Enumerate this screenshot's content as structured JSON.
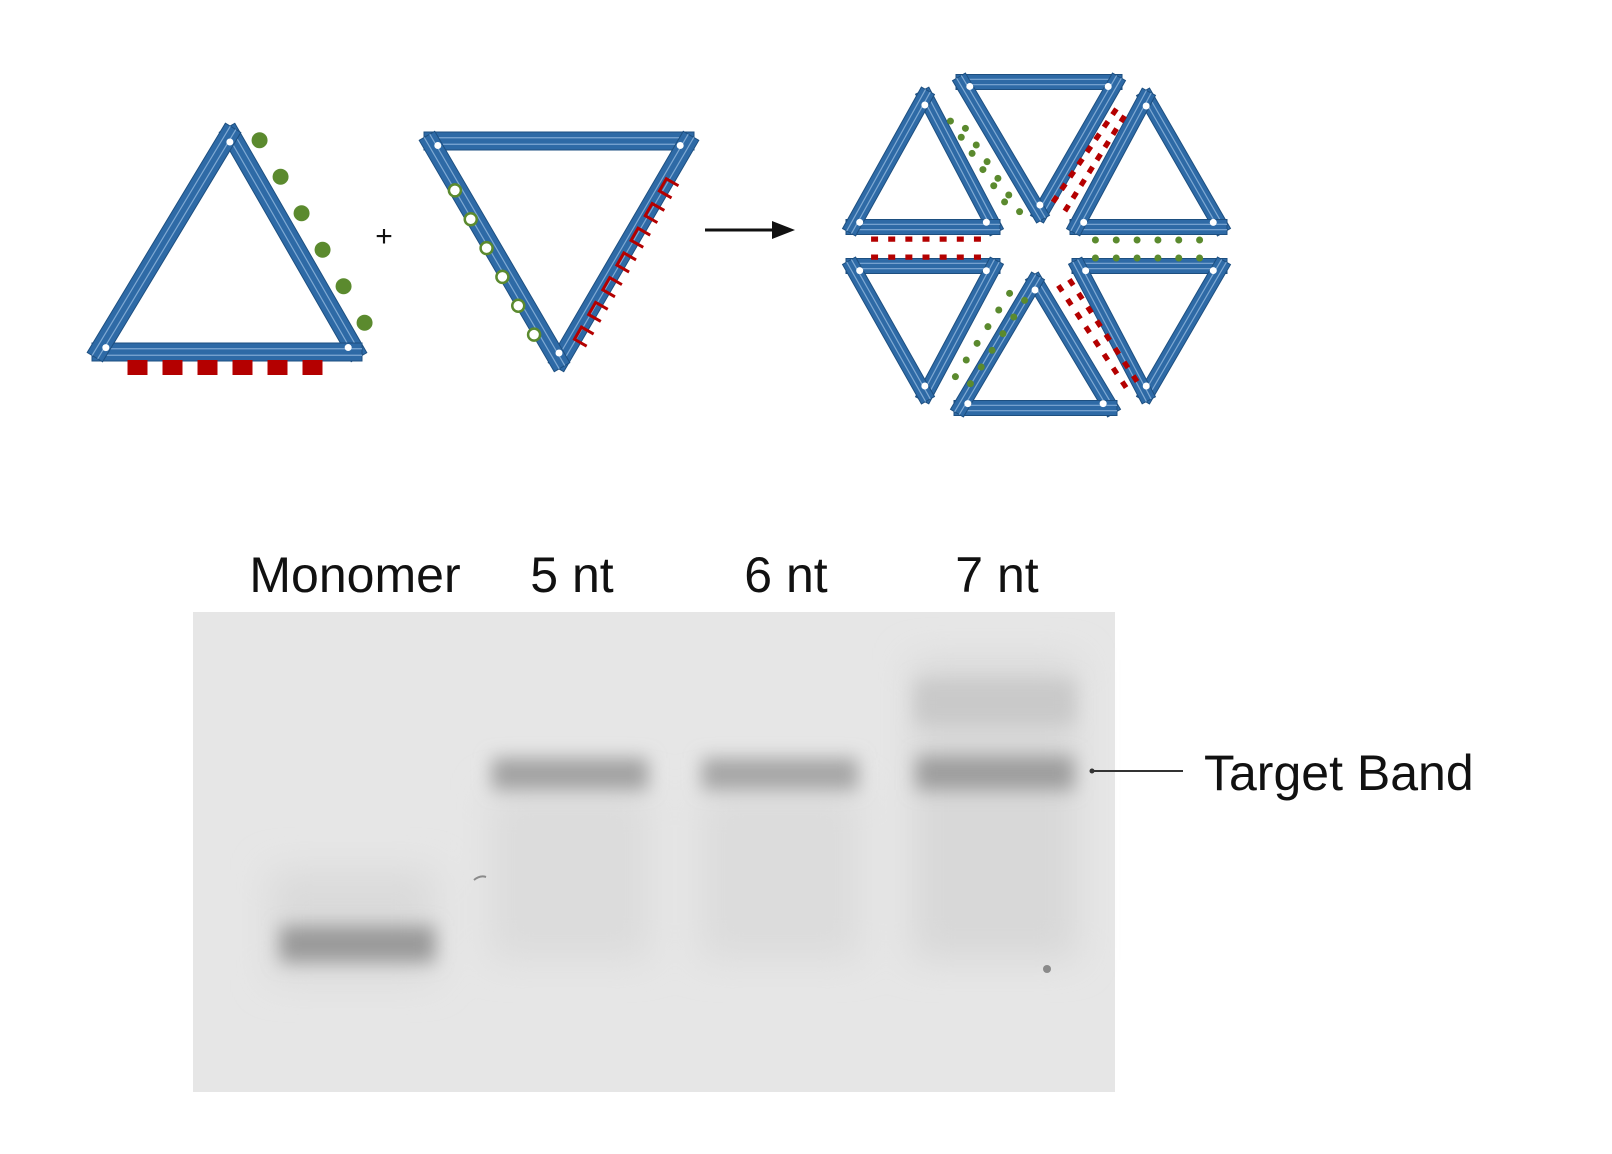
{
  "colors": {
    "edge_fill": "#2E6AA6",
    "edge_stroke": "#1D4F80",
    "edge_stripe": "#7FA9D3",
    "sticky_green": "#5B8A2E",
    "sticky_red": "#B40000",
    "gel_background": "#E8E8E8",
    "band_dark": "#8C8C8C",
    "text": "#111111"
  },
  "diagram": {
    "operator_plus": "+",
    "reaction": "triangle monomers with complementary green/red sticky-end edges assemble into a hexagonal six-triangle ring"
  },
  "gel": {
    "lanes": [
      {
        "label": "Monomer",
        "band": "monomer"
      },
      {
        "label": "5 nt",
        "band": "target"
      },
      {
        "label": "6 nt",
        "band": "target"
      },
      {
        "label": "7 nt",
        "band": "target"
      }
    ],
    "annotation": "Target Band"
  }
}
